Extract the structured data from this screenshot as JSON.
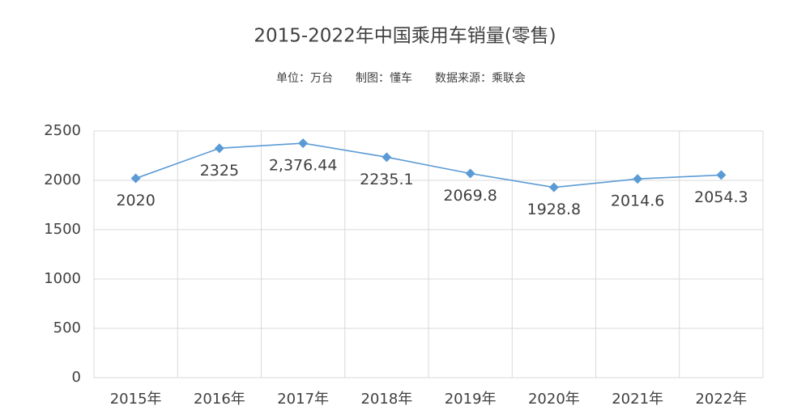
{
  "chart_data": {
    "type": "line",
    "title": "2015-2022年中国乘用车销量(零售)",
    "subtitle": "单位：万台　　制图：懂车　　数据来源：乘联会",
    "categories": [
      "2015年",
      "2016年",
      "2017年",
      "2018年",
      "2019年",
      "2020年",
      "2021年",
      "2022年"
    ],
    "series": [
      {
        "name": "销量",
        "color": "#5b9bd5",
        "values": [
          2020,
          2325,
          2376.44,
          2235.1,
          2069.8,
          1928.8,
          2014.6,
          2054.3
        ],
        "value_labels": [
          "2020",
          "2325",
          "2,376.44",
          "2235.1",
          "2069.8",
          "1928.8",
          "2014.6",
          "2054.3"
        ]
      }
    ],
    "ylim": [
      0,
      2500
    ],
    "yticks": [
      0,
      500,
      1000,
      1500,
      2000,
      2500
    ],
    "grid": true
  }
}
